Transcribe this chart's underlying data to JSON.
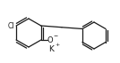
{
  "bg_color": "#ffffff",
  "line_color": "#1a1a1a",
  "line_width": 0.9,
  "text_color": "#1a1a1a",
  "figsize": [
    1.34,
    0.71
  ],
  "dpi": 100,
  "K_label": "K",
  "K_sup": "+",
  "O_label": "O",
  "O_sup": "−",
  "Cl_label": "Cl"
}
